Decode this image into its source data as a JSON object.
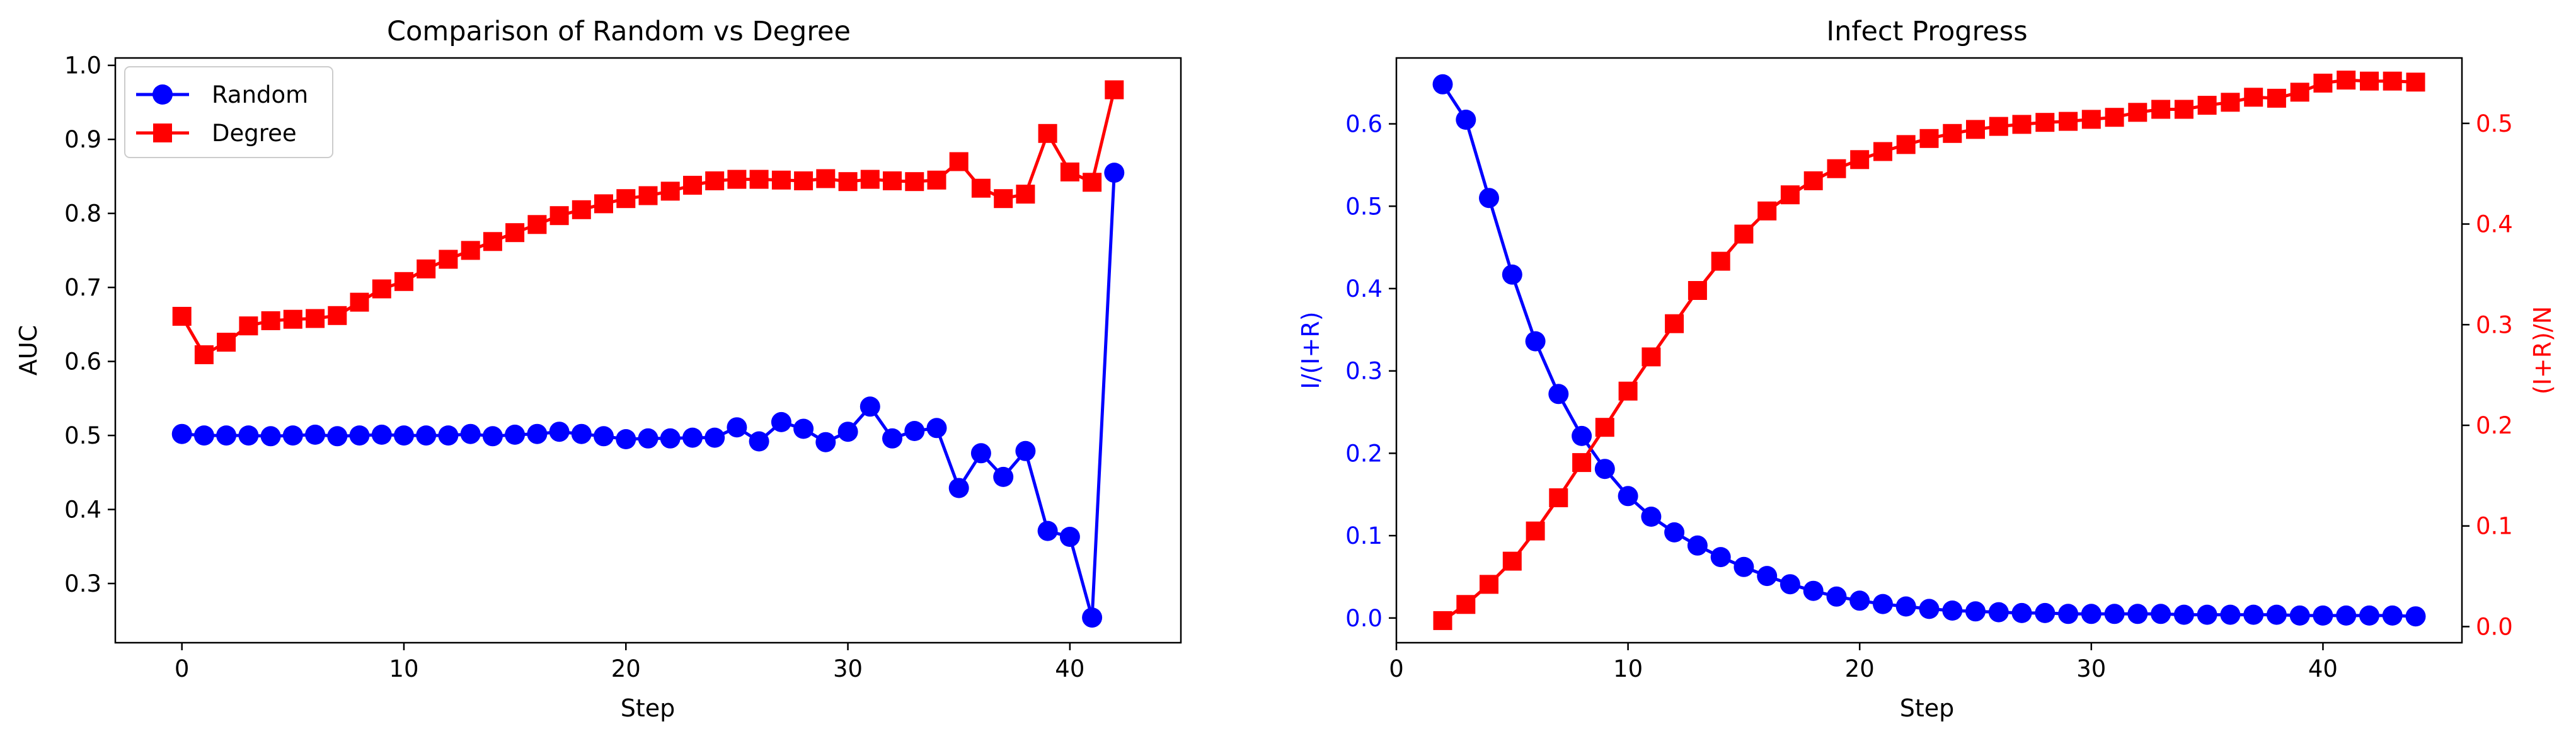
{
  "colors": {
    "random": "#0000ff",
    "degree": "#ff0000",
    "axis": "#000000",
    "background": "#ffffff"
  },
  "chart_data": [
    {
      "type": "line",
      "title": "Comparison of Random vs Degree",
      "xlabel": "Step",
      "ylabel": "AUC",
      "xlim": [
        -3,
        45
      ],
      "ylim": [
        0.22,
        1.01
      ],
      "xticks": [
        0,
        10,
        20,
        30,
        40
      ],
      "yticks": [
        0.3,
        0.4,
        0.5,
        0.6,
        0.7,
        0.8,
        0.9,
        1.0
      ],
      "ytick_labels": [
        "0.3",
        "0.4",
        "0.5",
        "0.6",
        "0.7",
        "0.8",
        "0.9",
        "1.0"
      ],
      "grid": false,
      "legend": "top-left",
      "x": [
        0,
        1,
        2,
        3,
        4,
        5,
        6,
        7,
        8,
        9,
        10,
        11,
        12,
        13,
        14,
        15,
        16,
        17,
        18,
        19,
        20,
        21,
        22,
        23,
        24,
        25,
        26,
        27,
        28,
        29,
        30,
        31,
        32,
        33,
        34,
        35,
        36,
        37,
        38,
        39,
        40,
        41,
        42
      ],
      "series": [
        {
          "name": "Random",
          "color": "#0000ff",
          "marker": "circle",
          "values": [
            0.502,
            0.5,
            0.5,
            0.5,
            0.499,
            0.5,
            0.501,
            0.499,
            0.5,
            0.501,
            0.5,
            0.5,
            0.5,
            0.502,
            0.499,
            0.501,
            0.502,
            0.505,
            0.502,
            0.499,
            0.495,
            0.496,
            0.496,
            0.497,
            0.497,
            0.511,
            0.492,
            0.518,
            0.509,
            0.491,
            0.505,
            0.539,
            0.496,
            0.506,
            0.51,
            0.429,
            0.476,
            0.444,
            0.479,
            0.371,
            0.363,
            0.254,
            0.855
          ]
        },
        {
          "name": "Degree",
          "color": "#ff0000",
          "marker": "square",
          "values": [
            0.661,
            0.609,
            0.626,
            0.648,
            0.655,
            0.657,
            0.658,
            0.662,
            0.68,
            0.698,
            0.708,
            0.725,
            0.738,
            0.75,
            0.762,
            0.774,
            0.785,
            0.797,
            0.805,
            0.813,
            0.82,
            0.824,
            0.83,
            0.838,
            0.844,
            0.846,
            0.846,
            0.845,
            0.844,
            0.847,
            0.843,
            0.846,
            0.844,
            0.843,
            0.845,
            0.87,
            0.834,
            0.82,
            0.826,
            0.908,
            0.856,
            0.842,
            0.967
          ]
        }
      ]
    },
    {
      "type": "line",
      "title": "Infect Progress",
      "xlabel": "Step",
      "ylabel": "I/(I+R)",
      "y2label": "(I+R)/N",
      "xlim": [
        0,
        46
      ],
      "ylim": [
        -0.03,
        0.68
      ],
      "y2lim": [
        -0.016,
        0.565
      ],
      "xticks": [
        0,
        10,
        20,
        30,
        40
      ],
      "yticks": [
        0.0,
        0.1,
        0.2,
        0.3,
        0.4,
        0.5,
        0.6
      ],
      "ytick_labels": [
        "0.0",
        "0.1",
        "0.2",
        "0.3",
        "0.4",
        "0.5",
        "0.6"
      ],
      "y2ticks": [
        0.0,
        0.1,
        0.2,
        0.3,
        0.4,
        0.5
      ],
      "y2tick_labels": [
        "0.0",
        "0.1",
        "0.2",
        "0.3",
        "0.4",
        "0.5"
      ],
      "grid": false,
      "x": [
        2,
        3,
        4,
        5,
        6,
        7,
        8,
        9,
        10,
        11,
        12,
        13,
        14,
        15,
        16,
        17,
        18,
        19,
        20,
        21,
        22,
        23,
        24,
        25,
        26,
        27,
        28,
        29,
        30,
        31,
        32,
        33,
        34,
        35,
        36,
        37,
        38,
        39,
        40,
        41,
        42,
        43,
        44
      ],
      "series": [
        {
          "name": "I/(I+R)",
          "axis": "left",
          "color": "#0000ff",
          "marker": "circle",
          "values": [
            0.648,
            0.605,
            0.51,
            0.417,
            0.336,
            0.272,
            0.221,
            0.181,
            0.148,
            0.123,
            0.104,
            0.088,
            0.074,
            0.062,
            0.051,
            0.041,
            0.033,
            0.026,
            0.021,
            0.017,
            0.014,
            0.011,
            0.009,
            0.008,
            0.007,
            0.006,
            0.006,
            0.005,
            0.005,
            0.005,
            0.005,
            0.005,
            0.004,
            0.004,
            0.004,
            0.004,
            0.004,
            0.003,
            0.003,
            0.003,
            0.003,
            0.003,
            0.002
          ]
        },
        {
          "name": "(I+R)/N",
          "axis": "right",
          "color": "#ff0000",
          "marker": "square",
          "values": [
            0.006,
            0.022,
            0.042,
            0.065,
            0.095,
            0.128,
            0.163,
            0.198,
            0.234,
            0.268,
            0.301,
            0.334,
            0.363,
            0.39,
            0.413,
            0.429,
            0.443,
            0.455,
            0.464,
            0.472,
            0.479,
            0.485,
            0.49,
            0.494,
            0.497,
            0.499,
            0.501,
            0.502,
            0.504,
            0.506,
            0.511,
            0.514,
            0.514,
            0.518,
            0.521,
            0.526,
            0.525,
            0.531,
            0.54,
            0.543,
            0.542,
            0.542,
            0.541
          ]
        }
      ]
    }
  ]
}
